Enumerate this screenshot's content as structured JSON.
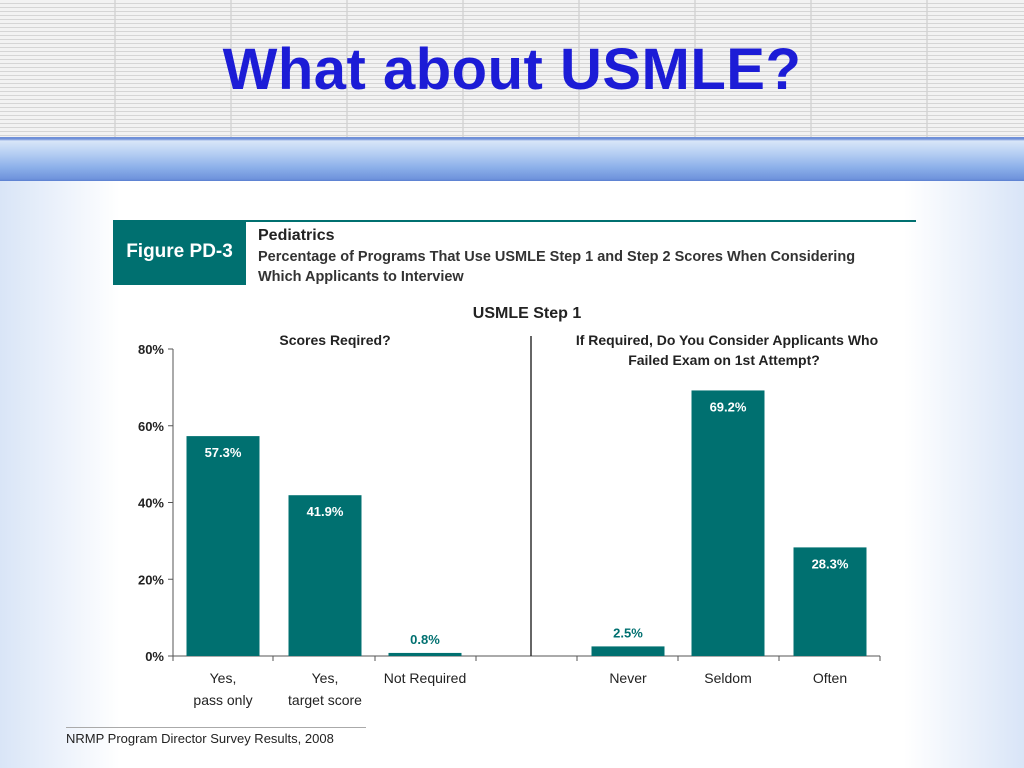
{
  "slide": {
    "title": "What about USMLE?"
  },
  "figure": {
    "label": "Figure PD-3",
    "category": "Pediatrics",
    "subtitle": "Percentage of Programs That Use USMLE Step 1 and Step 2 Scores When Considering Which Applicants to Interview",
    "source": "NRMP Program Director Survey Results, 2008"
  },
  "chart_data": {
    "type": "bar",
    "title": "USMLE Step 1",
    "ylim": [
      0,
      80
    ],
    "yticks": [
      "0%",
      "20%",
      "40%",
      "60%",
      "80%"
    ],
    "bar_color": "#007070",
    "panels": [
      {
        "title": "Scores Reqired?",
        "categories": [
          "Yes, pass only",
          "Yes, target score",
          "Not Required"
        ],
        "values": [
          57.3,
          41.9,
          0.8
        ],
        "labels": [
          "57.3%",
          "41.9%",
          "0.8%"
        ]
      },
      {
        "title": "If Required, Do You Consider Applicants Who Failed Exam on 1st Attempt?",
        "categories": [
          "Never",
          "Seldom",
          "Often"
        ],
        "values": [
          2.5,
          69.2,
          28.3
        ],
        "labels": [
          "2.5%",
          "69.2%",
          "28.3%"
        ]
      }
    ]
  }
}
